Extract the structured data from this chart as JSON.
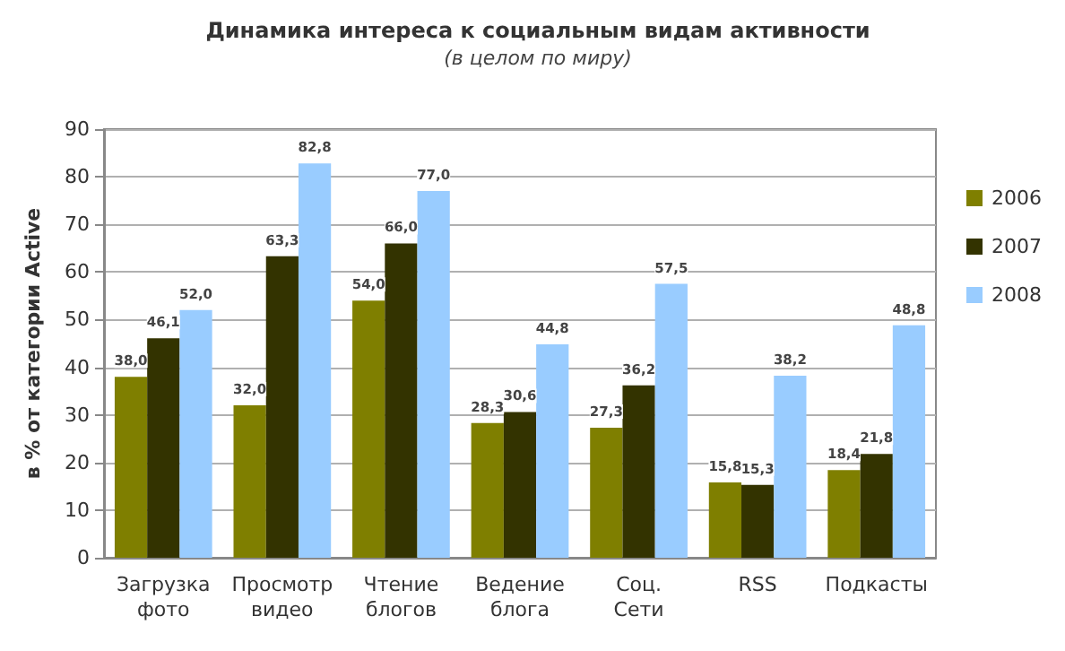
{
  "chart_data": {
    "type": "bar",
    "title": "Динамика интереса к социальным видам активности",
    "subtitle": "(в целом по миру)",
    "ylabel": "в % от категории Active",
    "categories": [
      "Загрузка фото",
      "Просмотр видео",
      "Чтение блогов",
      "Ведение блога",
      "Соц. Сети",
      "RSS",
      "Подкасты"
    ],
    "series": [
      {
        "name": "2006",
        "color": "#7f7f00",
        "values": [
          38.0,
          32.0,
          54.0,
          28.3,
          27.3,
          15.8,
          18.4
        ],
        "value_labels": [
          "38,0",
          "32,0",
          "54,0",
          "28,3",
          "27,3",
          "15,8",
          "18,4"
        ]
      },
      {
        "name": "2007",
        "color": "#333300",
        "values": [
          46.1,
          63.3,
          66.0,
          30.6,
          36.2,
          15.3,
          21.8
        ],
        "value_labels": [
          "46,1",
          "63,3",
          "66,0",
          "30,6",
          "36,2",
          "15,3",
          "21,8"
        ]
      },
      {
        "name": "2008",
        "color": "#99ccff",
        "values": [
          52.0,
          82.8,
          77.0,
          44.8,
          57.5,
          38.2,
          48.8
        ],
        "value_labels": [
          "52,0",
          "82,8",
          "77,0",
          "44,8",
          "57,5",
          "38,2",
          "48,8"
        ]
      }
    ],
    "ylim": [
      0,
      90
    ],
    "yticks": [
      0,
      10,
      20,
      30,
      40,
      50,
      60,
      70,
      80,
      90
    ],
    "grid": "y",
    "legend": "right"
  }
}
